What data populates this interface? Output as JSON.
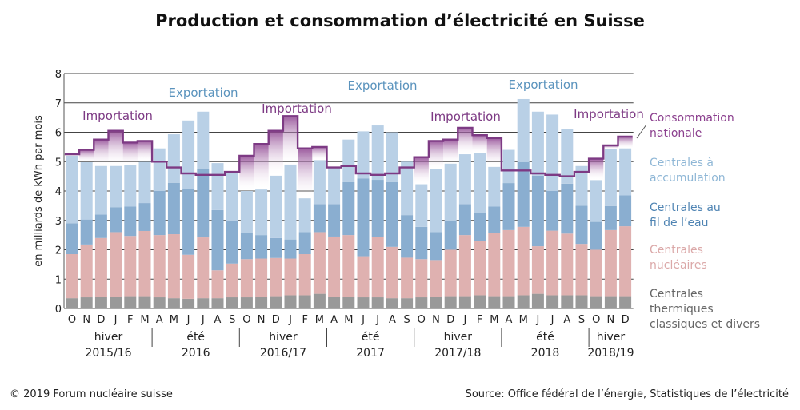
{
  "title": "Production et consommation d’électricité en Suisse",
  "footer": {
    "copyright": "© 2019 Forum nucléaire suisse",
    "source": "Source: Office fédéral de l’énergie, Statistiques de l’électricité"
  },
  "chart_data": {
    "type": "bar",
    "stacked": true,
    "ylabel": "en milliards de kWh par mois",
    "ylim": [
      0,
      8
    ],
    "yticks": [
      0,
      1,
      2,
      3,
      4,
      5,
      6,
      7,
      8
    ],
    "grid": true,
    "categories": [
      "O",
      "N",
      "D",
      "J",
      "F",
      "M",
      "A",
      "M",
      "J",
      "J",
      "A",
      "S",
      "O",
      "N",
      "D",
      "J",
      "F",
      "M",
      "A",
      "M",
      "J",
      "J",
      "A",
      "S",
      "O",
      "N",
      "D",
      "J",
      "F",
      "M",
      "A",
      "M",
      "J",
      "J",
      "A",
      "S",
      "O",
      "N",
      "D"
    ],
    "periods": [
      {
        "line1": "hiver",
        "line2": "2015/16",
        "start": 0,
        "end": 5
      },
      {
        "line1": "été",
        "line2": "2016",
        "start": 6,
        "end": 11
      },
      {
        "line1": "hiver",
        "line2": "2016/17",
        "start": 12,
        "end": 17
      },
      {
        "line1": "été",
        "line2": "2017",
        "start": 18,
        "end": 23
      },
      {
        "line1": "hiver",
        "line2": "2017/18",
        "start": 24,
        "end": 29
      },
      {
        "line1": "été",
        "line2": "2018",
        "start": 30,
        "end": 35
      },
      {
        "line1": "hiver",
        "line2": "2018/19",
        "start": 36,
        "end": 38
      }
    ],
    "series": [
      {
        "name": "Centrales thermiques classiques et divers",
        "color": "#999999",
        "values": [
          0.35,
          0.38,
          0.4,
          0.4,
          0.42,
          0.42,
          0.38,
          0.35,
          0.33,
          0.35,
          0.35,
          0.38,
          0.38,
          0.4,
          0.42,
          0.45,
          0.45,
          0.5,
          0.4,
          0.4,
          0.38,
          0.38,
          0.35,
          0.35,
          0.38,
          0.4,
          0.42,
          0.42,
          0.45,
          0.42,
          0.42,
          0.45,
          0.5,
          0.45,
          0.45,
          0.45,
          0.42,
          0.42,
          0.42
        ]
      },
      {
        "name": "Centrales nucléaires",
        "color": "#dfb1b0",
        "values": [
          1.5,
          1.8,
          2.0,
          2.2,
          2.05,
          2.22,
          2.12,
          2.18,
          1.5,
          2.07,
          0.95,
          1.15,
          1.3,
          1.3,
          1.3,
          1.25,
          1.4,
          2.1,
          2.05,
          2.1,
          1.4,
          2.05,
          1.75,
          1.38,
          1.3,
          1.25,
          1.58,
          2.08,
          1.85,
          2.15,
          2.25,
          2.33,
          1.62,
          2.2,
          2.1,
          1.75,
          1.58,
          2.25,
          2.38
        ]
      },
      {
        "name": "Centrales au fil de l’eau",
        "color": "#8aaed0",
        "values": [
          1.05,
          0.85,
          0.8,
          0.85,
          1.0,
          0.95,
          1.5,
          1.75,
          2.25,
          2.33,
          2.05,
          1.45,
          0.9,
          0.8,
          0.68,
          0.65,
          0.75,
          0.95,
          1.1,
          1.8,
          2.65,
          1.95,
          2.2,
          1.45,
          1.1,
          0.95,
          0.98,
          1.05,
          0.95,
          0.9,
          1.6,
          2.2,
          2.4,
          1.35,
          1.7,
          1.3,
          0.95,
          0.82,
          1.05
        ]
      },
      {
        "name": "Centrales à accumulation",
        "color": "#b9d0e6",
        "values": [
          2.3,
          1.95,
          1.65,
          1.4,
          1.4,
          1.4,
          1.45,
          1.65,
          2.32,
          1.95,
          1.6,
          1.65,
          1.42,
          1.55,
          2.12,
          2.55,
          1.15,
          1.5,
          1.25,
          1.45,
          1.6,
          1.85,
          1.7,
          1.82,
          1.45,
          2.15,
          1.95,
          1.7,
          2.05,
          1.35,
          1.13,
          2.15,
          2.18,
          2.6,
          1.85,
          1.35,
          1.42,
          1.95,
          1.6
        ]
      }
    ],
    "consumption": {
      "name": "Consommation nationale",
      "color": "#7d3a84",
      "values": [
        5.25,
        5.4,
        5.75,
        6.05,
        5.65,
        5.7,
        5.0,
        4.8,
        4.6,
        4.55,
        4.55,
        4.65,
        5.2,
        5.6,
        6.05,
        6.55,
        5.45,
        5.5,
        4.8,
        4.85,
        4.6,
        4.55,
        4.6,
        4.8,
        5.15,
        5.7,
        5.75,
        6.15,
        5.9,
        5.8,
        4.7,
        4.7,
        4.6,
        4.55,
        4.5,
        4.65,
        5.1,
        5.55,
        5.85
      ]
    },
    "annotations": [
      {
        "text": "Importation",
        "type": "import"
      },
      {
        "text": "Exportation",
        "type": "export"
      },
      {
        "text": "Importation",
        "type": "import"
      },
      {
        "text": "Exportation",
        "type": "export"
      },
      {
        "text": "Importation",
        "type": "import"
      },
      {
        "text": "Exportation",
        "type": "export"
      },
      {
        "text": "Importation",
        "type": "import"
      }
    ],
    "legend": [
      {
        "lines": [
          "Consommation",
          "nationale"
        ],
        "color": "#8b3f8e"
      },
      {
        "lines": [
          "Centrales à",
          "accumulation"
        ],
        "color": "#8fb7d6"
      },
      {
        "lines": [
          "Centrales au",
          "fil de l’eau"
        ],
        "color": "#4f84b3"
      },
      {
        "lines": [
          "Centrales",
          "nucléaires"
        ],
        "color": "#dba8a8"
      },
      {
        "lines": [
          "Centrales",
          "thermiques",
          "classiques et divers"
        ],
        "color": "#666666"
      }
    ]
  }
}
